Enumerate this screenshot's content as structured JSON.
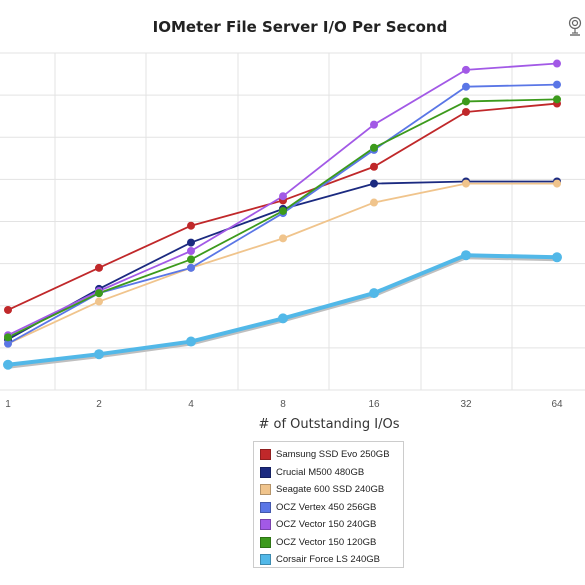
{
  "chart_data": {
    "type": "line",
    "title": "IOMeter File Server I/O Per Second",
    "xlabel": "# of Outstanding I/Os",
    "ylabel": "",
    "x": [
      1,
      2,
      4,
      8,
      16,
      32,
      64
    ],
    "x_tick_labels": [
      "1",
      "2",
      "4",
      "8",
      "16",
      "32",
      "64"
    ],
    "x_scale": "log2",
    "grid": true,
    "legend_position": "bottom-center",
    "y_tick_labels_visible": false,
    "series": [
      {
        "name": "Samsung SSD Evo 250GB",
        "color": "#c0282a",
        "values": [
          3.9,
          4.9,
          5.9,
          6.5,
          7.3,
          8.6,
          8.8
        ]
      },
      {
        "name": "Crucial M500 480GB",
        "color": "#1b2a80",
        "values": [
          3.2,
          4.4,
          5.5,
          6.3,
          6.9,
          6.95,
          6.95
        ]
      },
      {
        "name": "Seagate 600 SSD 240GB",
        "color": "#f0c48c",
        "values": [
          3.1,
          4.1,
          4.9,
          5.6,
          6.45,
          6.9,
          6.9
        ]
      },
      {
        "name": "OCZ Vertex 450 256GB",
        "color": "#5a76e6",
        "values": [
          3.1,
          4.3,
          4.9,
          6.2,
          7.7,
          9.2,
          9.25
        ]
      },
      {
        "name": "OCZ Vector 150 240GB",
        "color": "#a259e6",
        "values": [
          3.3,
          4.35,
          5.3,
          6.6,
          8.3,
          9.6,
          9.75
        ]
      },
      {
        "name": "OCZ Vector 150 120GB",
        "color": "#3c9a1c",
        "values": [
          3.25,
          4.3,
          5.1,
          6.25,
          7.75,
          8.85,
          8.9
        ]
      },
      {
        "name": "Corsair Force LS 240GB",
        "color": "#52b8e8",
        "values": [
          2.6,
          2.85,
          3.15,
          3.7,
          4.3,
          5.2,
          5.15
        ]
      }
    ]
  },
  "icons": {
    "corner": "webcam-icon"
  }
}
